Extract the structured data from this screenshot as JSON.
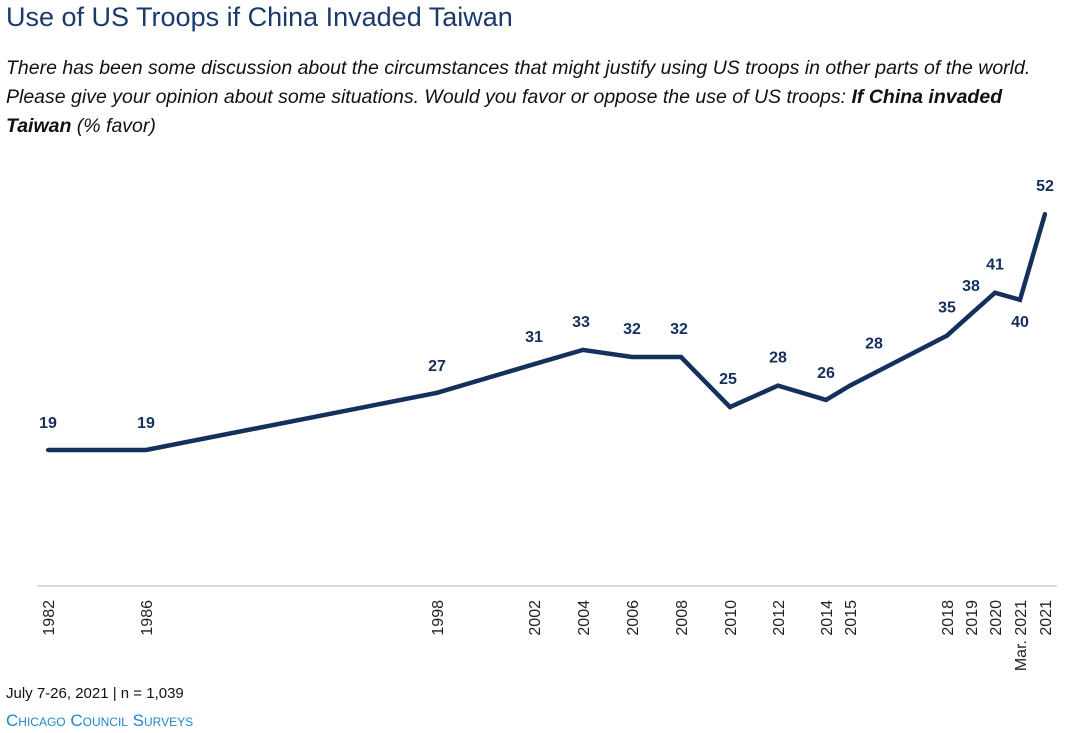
{
  "title": "Use of US Troops if China Invaded Taiwan",
  "subtitle": {
    "question": "There has been some discussion about the circumstances that might justify using US troops in other parts of the world. Please give your opinion about some situations. Would you favor or oppose the use of US troops: ",
    "emphasis": "If China invaded Taiwan",
    "suffix": " (% favor)"
  },
  "footer": {
    "fieldwork": "July 7-26, 2021 | n = 1,039",
    "brand": "Chicago Council Surveys"
  },
  "colors": {
    "line": "#14305c",
    "title": "#1a3a6b",
    "brand": "#1e88c8",
    "axis": "#d0d0d0"
  },
  "chart_data": {
    "type": "line",
    "title": "Use of US Troops if China Invaded Taiwan",
    "xlabel": "",
    "ylabel": "",
    "ylim": [
      0,
      60
    ],
    "grid": false,
    "legend": "none",
    "x": [
      "1982",
      "1986",
      "1998",
      "2002",
      "2004",
      "2006",
      "2008",
      "2010",
      "2012",
      "2014",
      "2015",
      "2018",
      "2019",
      "2020",
      "Mar. 2021",
      "2021"
    ],
    "series": [
      {
        "values": [
          19,
          19,
          27,
          31,
          33,
          32,
          32,
          25,
          28,
          26,
          28,
          35,
          38,
          41,
          40,
          52
        ]
      }
    ]
  }
}
